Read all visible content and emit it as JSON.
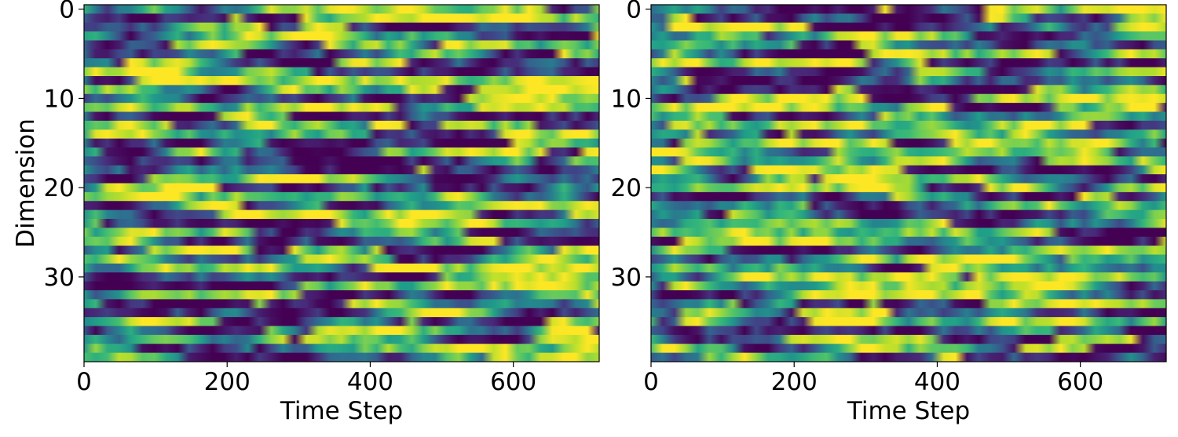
{
  "chart_data": [
    {
      "type": "heatmap",
      "title": "",
      "xlabel": "Time Step",
      "ylabel": "Dimension",
      "x_range": [
        0,
        720
      ],
      "y_range": [
        0,
        40
      ],
      "y_inverted": true,
      "x_ticks": [
        0,
        200,
        400,
        600
      ],
      "y_ticks": [
        0,
        10,
        20,
        30
      ],
      "rows": 40,
      "colormap": "viridis",
      "grid": false,
      "colorbar": false,
      "seed": 7
    },
    {
      "type": "heatmap",
      "title": "",
      "xlabel": "Time Step",
      "ylabel": "",
      "x_range": [
        0,
        720
      ],
      "y_range": [
        0,
        40
      ],
      "y_inverted": true,
      "x_ticks": [
        0,
        200,
        400,
        600
      ],
      "y_ticks": [
        0,
        10,
        20,
        30
      ],
      "rows": 40,
      "colormap": "viridis",
      "grid": false,
      "colorbar": false,
      "seed": 23
    }
  ],
  "colors": {
    "viridis_low": "#440154",
    "viridis_mid": "#21918c",
    "viridis_high": "#fde725"
  }
}
